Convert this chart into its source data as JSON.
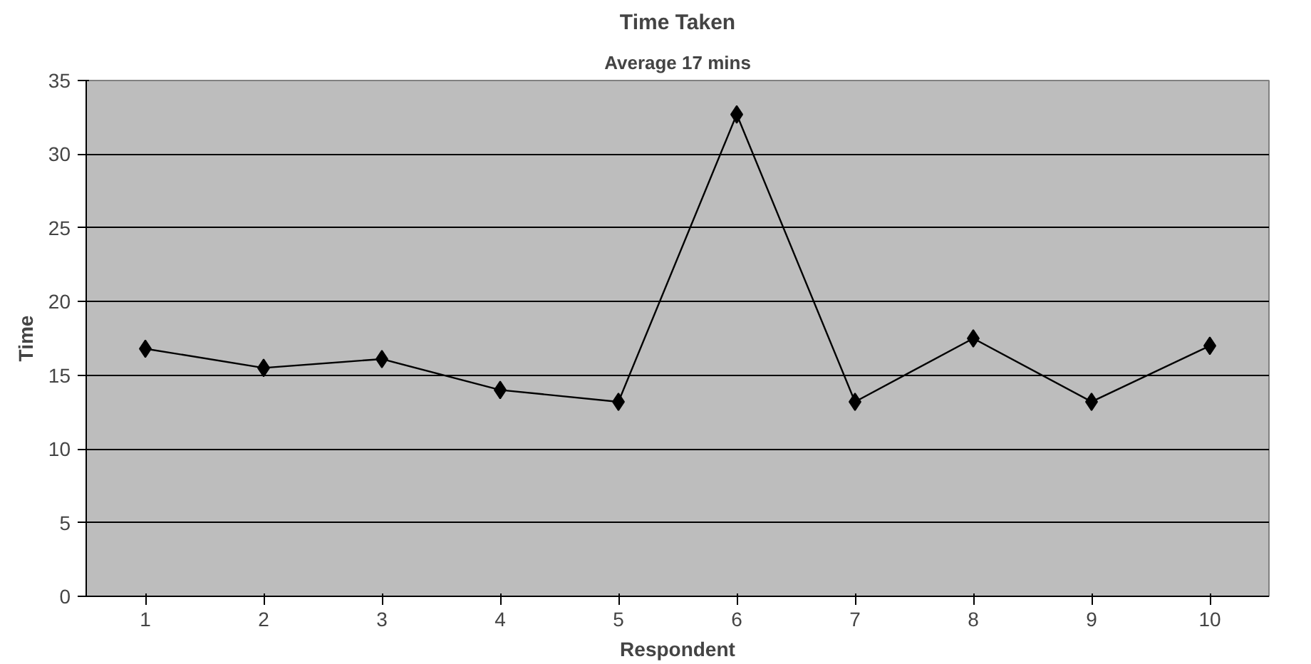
{
  "chart_data": {
    "type": "line",
    "title": "Time Taken",
    "subtitle": "Average 17 mins",
    "xlabel": "Respondent",
    "ylabel": "Time",
    "categories": [
      "1",
      "2",
      "3",
      "4",
      "5",
      "6",
      "7",
      "8",
      "9",
      "10"
    ],
    "series": [
      {
        "color": "#000000",
        "values": [
          16.8,
          15.5,
          16.1,
          14.0,
          13.2,
          32.7,
          13.2,
          17.5,
          13.2,
          17.0
        ]
      }
    ],
    "ylim": [
      0,
      35
    ],
    "yticks": [
      0,
      5,
      10,
      15,
      20,
      25,
      30,
      35
    ],
    "grid": "y",
    "marker": "diamond",
    "line_style": "solid"
  }
}
